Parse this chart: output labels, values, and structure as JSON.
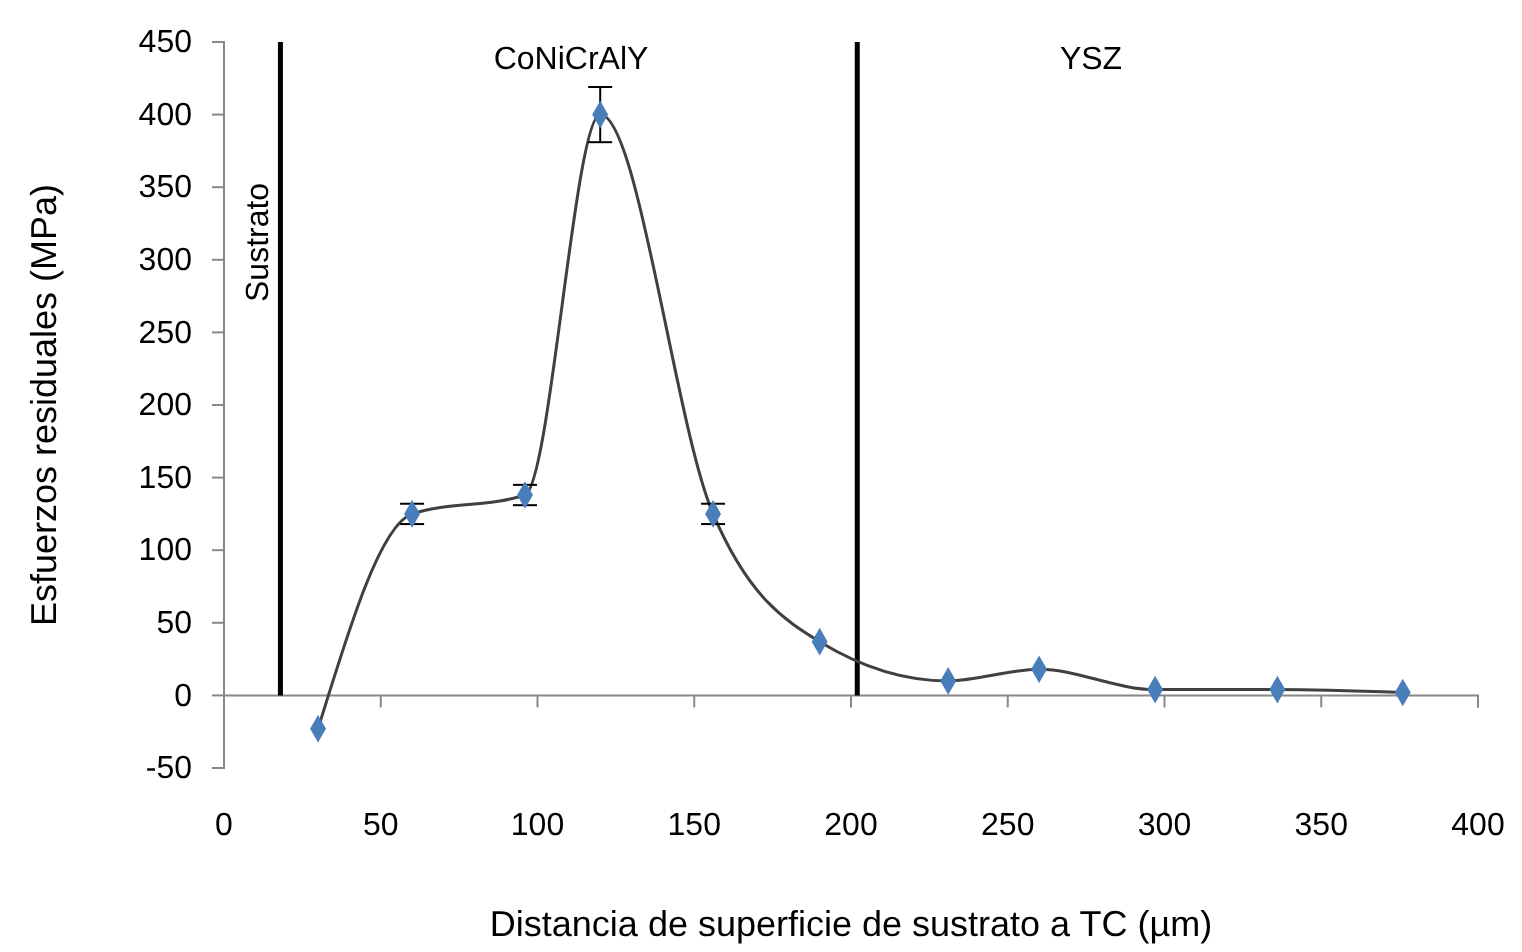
{
  "chart_data": {
    "type": "line",
    "xlabel": "Distancia de  superficie de sustrato a TC (µm)",
    "ylabel": "Esfuerzos  residuales  (MPa)",
    "x": [
      30,
      60,
      96,
      120,
      156,
      190,
      231,
      260,
      297,
      336,
      376
    ],
    "series": [
      {
        "color": "#4a7ebb",
        "marker": "diamond",
        "values": [
          -23,
          125,
          138,
          400,
          125,
          37,
          10,
          18,
          4,
          4,
          2
        ],
        "errors": [
          null,
          7,
          7,
          19,
          7,
          null,
          null,
          null,
          null,
          null,
          null
        ]
      }
    ],
    "xlim": [
      0,
      400
    ],
    "xticks": [
      0,
      50,
      100,
      150,
      200,
      250,
      300,
      350,
      400
    ],
    "ylim": [
      -50,
      450
    ],
    "yticks": [
      -50,
      0,
      50,
      100,
      150,
      200,
      250,
      300,
      350,
      400,
      450
    ],
    "grid": false,
    "ref_lines": [
      {
        "axis": "x",
        "value": 18,
        "label": "Sustrato",
        "color": "#000000"
      },
      {
        "axis": "x",
        "value": 202,
        "label": null,
        "color": "#000000"
      }
    ],
    "annotations": [
      "CoNiCrAlY",
      "YSZ"
    ]
  }
}
